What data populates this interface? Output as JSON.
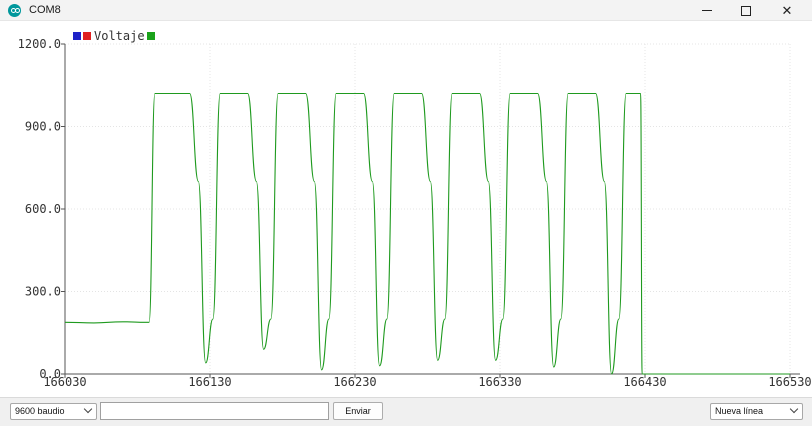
{
  "window": {
    "title": "COM8",
    "app_icon": "arduino-icon",
    "controls": [
      "minimize-icon",
      "maximize-icon",
      "close-icon"
    ]
  },
  "legend": {
    "label": "Voltaje",
    "swatches_before": [
      "#1e22c8",
      "#e02020"
    ],
    "swatch_after": "#1aa21a"
  },
  "chart_data": {
    "type": "line",
    "title": "",
    "xlabel": "",
    "ylabel": "",
    "xlim": [
      166030,
      166530
    ],
    "ylim": [
      0,
      1200
    ],
    "y_tick_labels": [
      "0.0",
      "300.0",
      "600.0",
      "900.0",
      "1200.0"
    ],
    "x_tick_labels": [
      "166030",
      "166130",
      "166230",
      "166330",
      "166430",
      "166530"
    ],
    "grid": true,
    "series": [
      {
        "name": "Voltaje",
        "color": "#1f9a1f",
        "x": [
          166030,
          166050,
          166070,
          166086,
          166088,
          166092,
          166100,
          166116,
          166122,
          166127,
          166132,
          166137,
          166142,
          166156,
          166162,
          166167,
          166172,
          166177,
          166182,
          166196,
          166202,
          166207,
          166212,
          166217,
          166222,
          166236,
          166242,
          166247,
          166252,
          166257,
          166262,
          166276,
          166282,
          166287,
          166292,
          166297,
          166302,
          166316,
          166322,
          166327,
          166332,
          166337,
          166342,
          166356,
          166362,
          166367,
          166372,
          166377,
          166382,
          166396,
          166402,
          166407,
          166412,
          166417,
          166423,
          166427,
          166428,
          166530
        ],
        "y": [
          188,
          186,
          190,
          188,
          188,
          1020,
          1020,
          1020,
          700,
          40,
          200,
          1020,
          1020,
          1020,
          700,
          90,
          200,
          1020,
          1020,
          1020,
          700,
          15,
          200,
          1020,
          1020,
          1020,
          700,
          30,
          200,
          1020,
          1020,
          1020,
          700,
          50,
          200,
          1020,
          1020,
          1020,
          700,
          50,
          200,
          1020,
          1020,
          1020,
          700,
          25,
          200,
          1020,
          1020,
          1020,
          700,
          0,
          200,
          1020,
          1020,
          1020,
          0,
          0
        ]
      }
    ]
  },
  "controls": {
    "baud_selected": "9600 baudio",
    "message_value": "",
    "send_label": "Enviar",
    "line_ending_selected": "Nueva línea"
  }
}
